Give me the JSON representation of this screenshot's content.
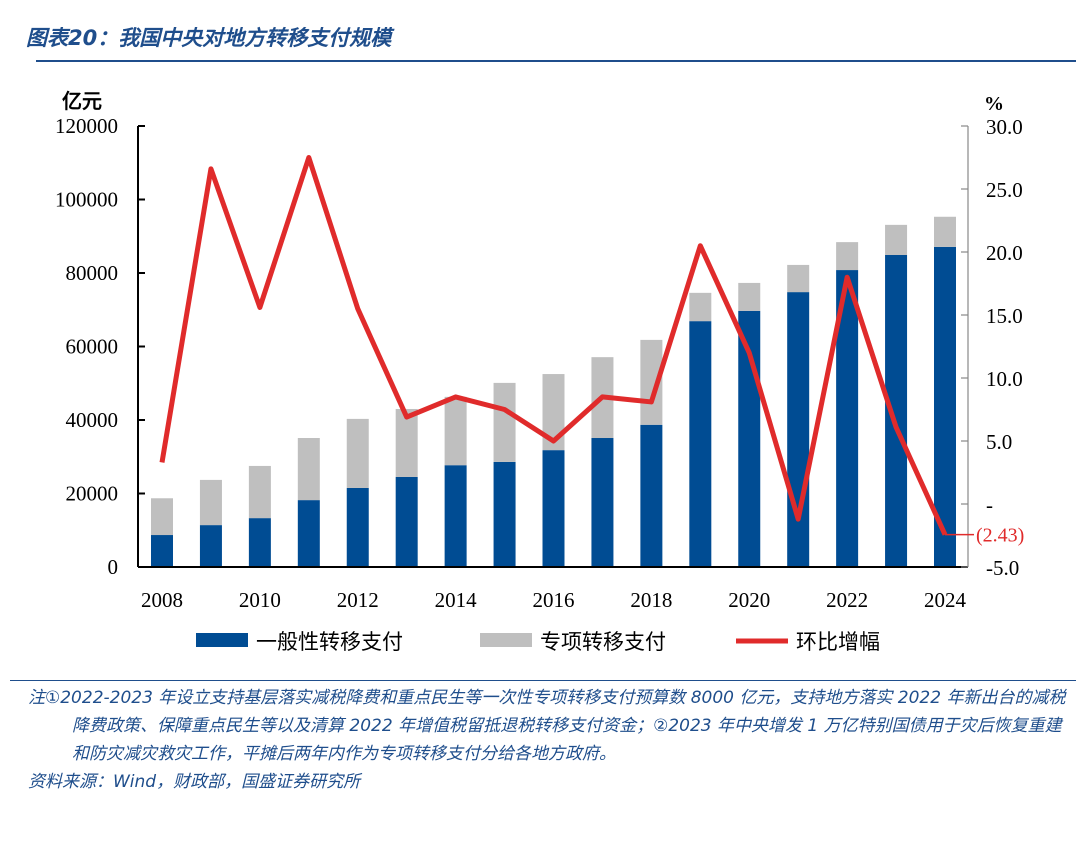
{
  "title": "图表20：我国中央对地方转移支付规模",
  "chart_data": {
    "type": "bar+line",
    "categories": [
      "2008",
      "2009",
      "2010",
      "2011",
      "2012",
      "2013",
      "2014",
      "2015",
      "2016",
      "2017",
      "2018",
      "2019",
      "2020",
      "2021",
      "2022",
      "2023",
      "2024"
    ],
    "x_tick_labels": [
      "2008",
      "2010",
      "2012",
      "2014",
      "2016",
      "2018",
      "2020",
      "2022",
      "2024"
    ],
    "left_axis": {
      "label": "亿元",
      "range": [
        0,
        120000
      ],
      "ticks": [
        "0",
        "20000",
        "40000",
        "60000",
        "80000",
        "100000",
        "120000"
      ]
    },
    "right_axis": {
      "label": "%",
      "range": [
        -5,
        30
      ],
      "ticks": [
        "-5.0",
        "-",
        "5.0",
        "10.0",
        "15.0",
        "20.0",
        "25.0",
        "30.0"
      ]
    },
    "series": [
      {
        "name": "一般性转移支付",
        "kind": "stacked-bar",
        "color": "#004c93",
        "values": [
          8700,
          11400,
          13300,
          18200,
          21500,
          24500,
          27700,
          28600,
          31800,
          35100,
          38700,
          66900,
          69700,
          74800,
          80800,
          84900,
          87100
        ]
      },
      {
        "name": "专项转移支付",
        "kind": "stacked-bar",
        "color": "#bfbfbf",
        "values": [
          10000,
          12300,
          14200,
          16900,
          18800,
          18500,
          18600,
          21500,
          20700,
          22000,
          23100,
          7700,
          7600,
          7400,
          7600,
          8200,
          8200
        ]
      },
      {
        "name": "环比增幅",
        "kind": "line",
        "axis": "right",
        "color": "#e02b2b",
        "values": [
          3.3,
          26.6,
          15.6,
          27.5,
          15.5,
          6.9,
          8.5,
          7.5,
          5.0,
          8.5,
          8.1,
          20.5,
          12.0,
          -1.2,
          18.0,
          6.1,
          -2.43
        ]
      }
    ],
    "annotations": [
      "(2.43)"
    ],
    "legend": "bottom",
    "grid": false
  },
  "notes": {
    "line1": "注①2022-2023 年设立支持基层落实减税降费和重点民生等一次性专项转移支付预算数 8000 亿元，支持地方落实 2022 年新出台的减税降费政策、保障重点民生等以及清算 2022 年增值税留抵退税转移支付资金；②2023 年中央增发 1 万亿特别国债用于灾后恢复重建和防灾减灾救灾工作，平摊后两年内作为专项转移支付分给各地方政府。",
    "source": "资料来源：Wind，财政部，国盛证券研究所"
  }
}
